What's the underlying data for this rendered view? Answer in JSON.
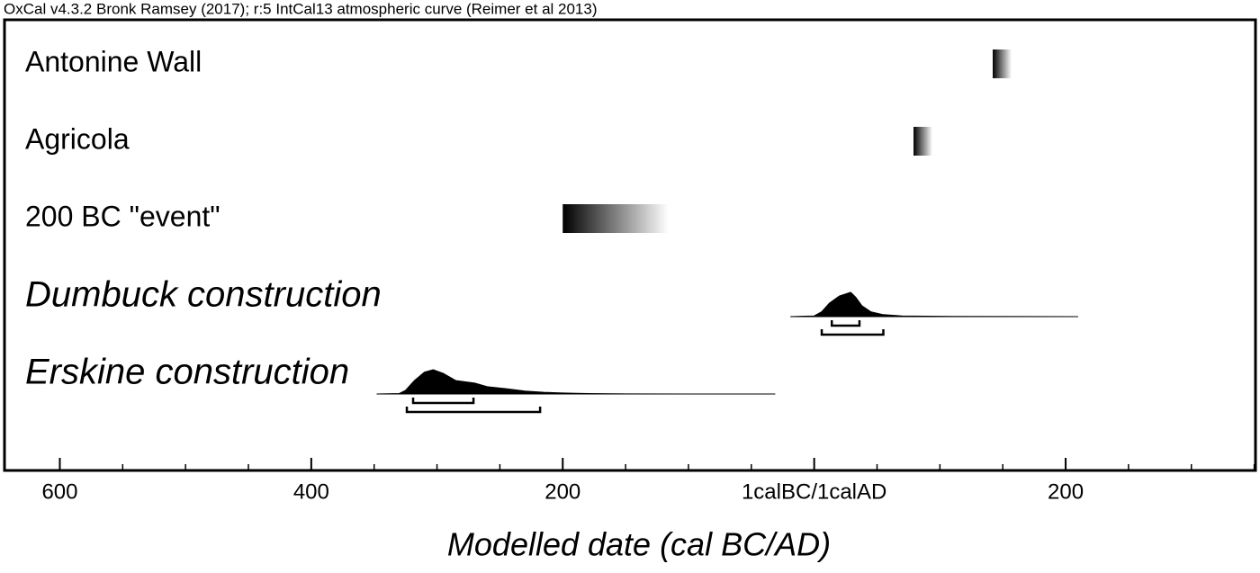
{
  "chart_data": {
    "type": "oxcal",
    "header": "OxCal v4.3.2 Bronk Ramsey (2017); r:5 IntCal13 atmospheric curve (Reimer et al 2013)",
    "x_label": "Modelled date (cal BC/AD)",
    "xlim": [
      -644,
      351
    ],
    "xticks": [
      {
        "value": -600,
        "label": "600"
      },
      {
        "value": -400,
        "label": "400"
      },
      {
        "value": -200,
        "label": "200"
      },
      {
        "value": 0,
        "label": "1calBC/1calAD"
      },
      {
        "value": 200,
        "label": "200"
      }
    ],
    "xminorticks": [
      -550,
      -500,
      -450,
      -350,
      -300,
      -250,
      -150,
      -100,
      -50,
      50,
      100,
      150,
      250,
      300,
      350
    ],
    "color": "#000000",
    "items": [
      {
        "name": "Antonine Wall",
        "kind": "range",
        "italic": false,
        "range": [
          142,
          157
        ]
      },
      {
        "name": "Agricola",
        "kind": "range",
        "italic": false,
        "range": [
          79,
          94
        ]
      },
      {
        "name": "200 BC \"event\"",
        "kind": "range",
        "italic": false,
        "range": [
          -200,
          -116
        ]
      },
      {
        "name": "Dumbuck construction",
        "kind": "distribution",
        "italic": true,
        "x": [
          -19,
          0,
          6,
          12,
          20,
          29,
          33,
          38,
          45,
          55,
          70,
          110,
          210
        ],
        "density": [
          0,
          0.03,
          0.2,
          0.55,
          0.85,
          1,
          0.8,
          0.45,
          0.2,
          0.08,
          0.03,
          0.01,
          0
        ],
        "hpd68": [
          14,
          36
        ],
        "hpd95": [
          6,
          55
        ]
      },
      {
        "name": "Erskine construction",
        "kind": "distribution",
        "italic": true,
        "x": [
          -348,
          -330,
          -325,
          -318,
          -310,
          -303,
          -295,
          -285,
          -270,
          -260,
          -245,
          -230,
          -215,
          -200,
          -180,
          -150,
          -31
        ],
        "density": [
          0,
          0.02,
          0.15,
          0.55,
          0.9,
          1,
          0.85,
          0.55,
          0.45,
          0.3,
          0.22,
          0.12,
          0.07,
          0.04,
          0.02,
          0.005,
          0
        ],
        "hpd68": [
          -319,
          -271
        ],
        "hpd95": [
          -324,
          -218
        ]
      }
    ]
  }
}
